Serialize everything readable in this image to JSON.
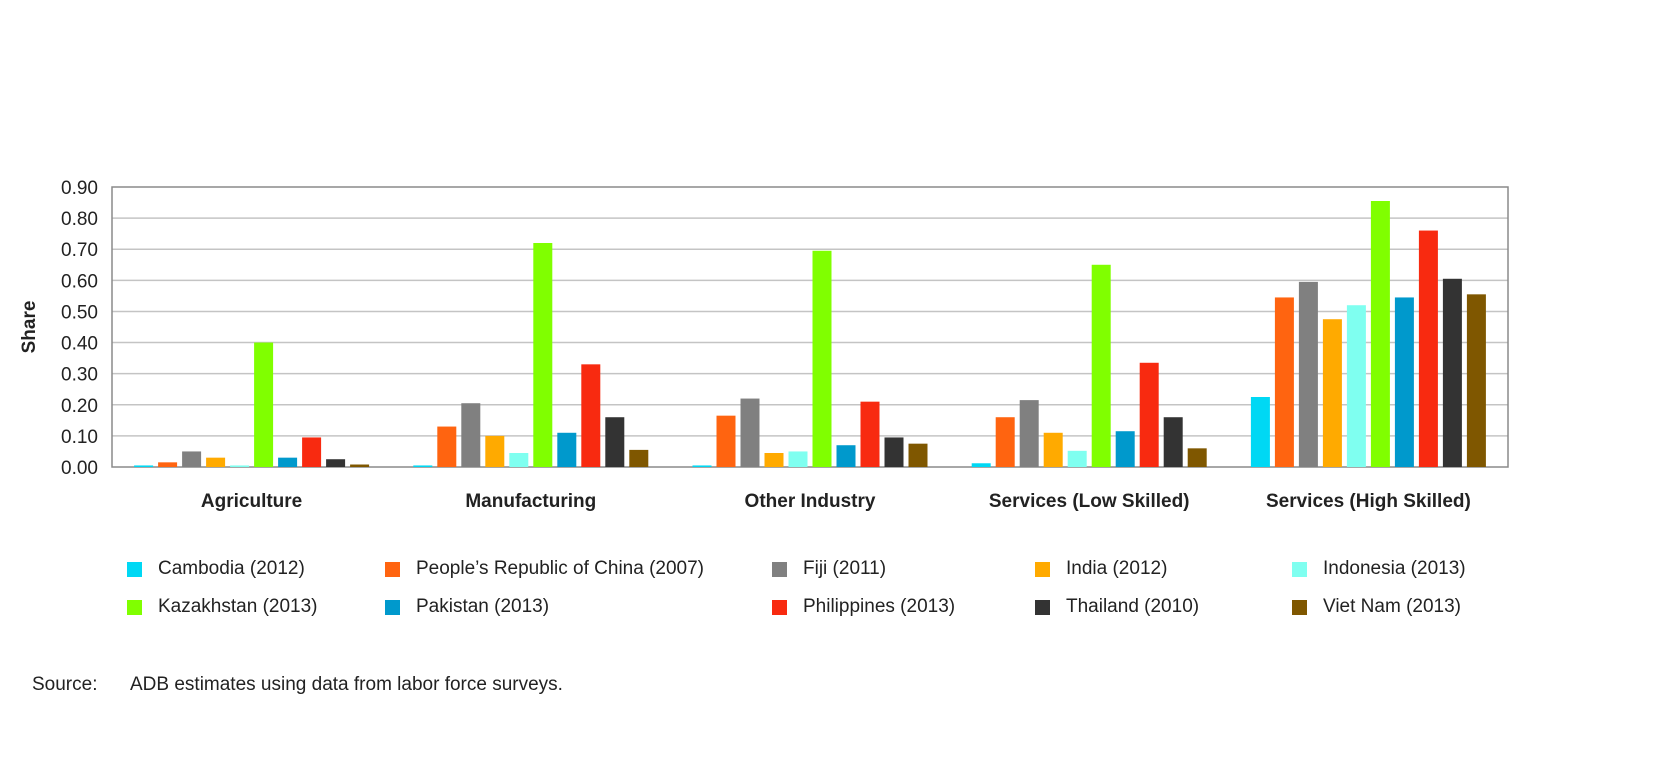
{
  "chart_data": {
    "type": "bar",
    "title": "",
    "xlabel": "",
    "ylabel": "Share",
    "ylim": [
      0,
      0.9
    ],
    "yticks": [
      "0.00",
      "0.10",
      "0.20",
      "0.30",
      "0.40",
      "0.50",
      "0.60",
      "0.70",
      "0.80",
      "0.90"
    ],
    "grid": true,
    "legend_placement": "bottom",
    "categories": [
      "Agriculture",
      "Manufacturing",
      "Other Industry",
      "Services (Low Skilled)",
      "Services (High Skilled)"
    ],
    "series": [
      {
        "name": "Cambodia (2012)",
        "color": "#00D8F4",
        "values": [
          0.005,
          0.005,
          0.005,
          0.012,
          0.225
        ]
      },
      {
        "name": "People’s Republic of China (2007)",
        "color": "#FF6410",
        "values": [
          0.015,
          0.13,
          0.165,
          0.16,
          0.545
        ]
      },
      {
        "name": "Fiji (2011)",
        "color": "#808080",
        "values": [
          0.05,
          0.205,
          0.22,
          0.215,
          0.595
        ]
      },
      {
        "name": "India (2012)",
        "color": "#FFAA00",
        "values": [
          0.03,
          0.1,
          0.045,
          0.11,
          0.475
        ]
      },
      {
        "name": "Indonesia (2013)",
        "color": "#7FFFF0",
        "values": [
          0.005,
          0.045,
          0.05,
          0.052,
          0.52
        ]
      },
      {
        "name": "Kazakhstan (2013)",
        "color": "#80FF00",
        "values": [
          0.4,
          0.72,
          0.695,
          0.65,
          0.855
        ]
      },
      {
        "name": "Pakistan (2013)",
        "color": "#0099CC",
        "values": [
          0.03,
          0.11,
          0.07,
          0.115,
          0.545
        ]
      },
      {
        "name": "Philippines (2013)",
        "color": "#F82A10",
        "values": [
          0.095,
          0.33,
          0.21,
          0.335,
          0.76
        ]
      },
      {
        "name": "Thailand (2010)",
        "color": "#333333",
        "values": [
          0.025,
          0.16,
          0.095,
          0.16,
          0.605
        ]
      },
      {
        "name": "Viet Nam (2013)",
        "color": "#7F5700",
        "values": [
          0.008,
          0.055,
          0.075,
          0.06,
          0.555
        ]
      }
    ]
  },
  "source": {
    "label": "Source:",
    "text": "ADB estimates using data from labor force surveys."
  }
}
